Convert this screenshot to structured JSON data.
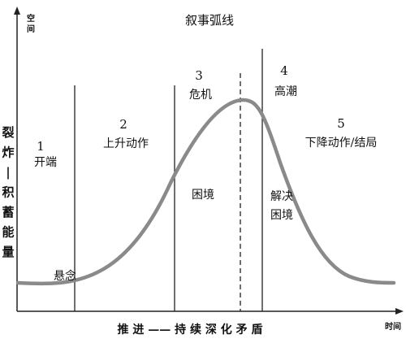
{
  "title": "叙事弧线",
  "axes": {
    "y_label": "空间",
    "x_label": "时间",
    "y_side_label": [
      "裂",
      "炸",
      "|",
      "积",
      "蓄",
      "能",
      "量"
    ]
  },
  "stages": [
    {
      "number": "1",
      "name": "开端"
    },
    {
      "number": "2",
      "name": "上升动作"
    },
    {
      "number": "3",
      "name": "危机"
    },
    {
      "number": "4",
      "name": "高潮"
    },
    {
      "number": "5",
      "name": "下降动作/结局"
    }
  ],
  "notes": {
    "suspense": "悬念",
    "dilemma": "困境",
    "resolve": [
      "解决",
      "困境"
    ]
  },
  "x_caption": "推 进 —— 持 续 深 化 矛 盾"
}
